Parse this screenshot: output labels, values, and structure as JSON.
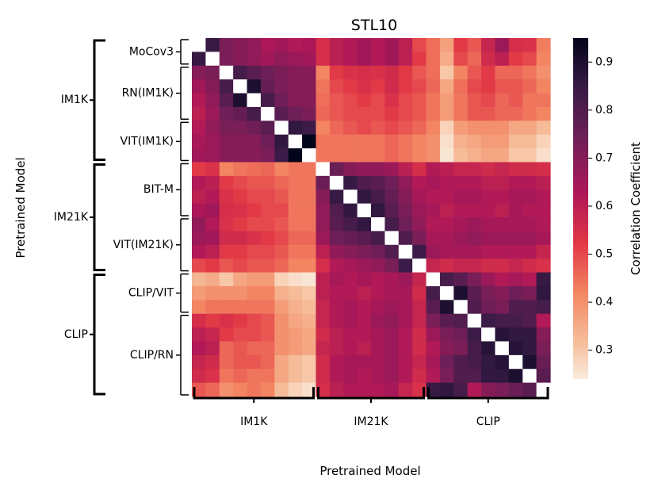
{
  "chart_data": {
    "type": "heatmap",
    "title": "STL10",
    "xlabel": "Pretrained Model",
    "ylabel": "Pretrained Model",
    "n": 26,
    "colorbar": {
      "label": "Correlation Coefficient",
      "range": [
        0.24,
        0.95
      ],
      "ticks": [
        "0.3",
        "0.4",
        "0.5",
        "0.6",
        "0.7",
        "0.8",
        "0.9"
      ],
      "tick_values": [
        0.3,
        0.4,
        0.5,
        0.6,
        0.7,
        0.8,
        0.9
      ],
      "colormap": "rocket_r",
      "diagonal_color": "#ffffff"
    },
    "groups": [
      {
        "name": "IM1K",
        "start": 0,
        "end": 8
      },
      {
        "name": "IM21K",
        "start": 9,
        "end": 16
      },
      {
        "name": "CLIP",
        "start": 17,
        "end": 25
      }
    ],
    "subgroups": [
      {
        "name": "MoCov3",
        "start": 0,
        "end": 1
      },
      {
        "name": "RN(IM1K)",
        "start": 2,
        "end": 5
      },
      {
        "name": "VIT(IM1K)",
        "start": 6,
        "end": 8
      },
      {
        "name": "BIT-M",
        "start": 9,
        "end": 12
      },
      {
        "name": "VIT(IM21K)",
        "start": 13,
        "end": 16
      },
      {
        "name": "CLIP/VIT",
        "start": 17,
        "end": 19
      },
      {
        "name": "CLIP/RN",
        "start": 20,
        "end": 25
      }
    ],
    "matrix": [
      [
        1.0,
        0.85,
        0.72,
        0.7,
        0.68,
        0.63,
        0.65,
        0.62,
        0.63,
        0.55,
        0.6,
        0.62,
        0.65,
        0.62,
        0.65,
        0.6,
        0.5,
        0.45,
        0.37,
        0.52,
        0.48,
        0.58,
        0.66,
        0.55,
        0.54,
        0.43
      ],
      [
        0.85,
        1.0,
        0.72,
        0.7,
        0.68,
        0.65,
        0.68,
        0.66,
        0.65,
        0.55,
        0.6,
        0.62,
        0.65,
        0.62,
        0.65,
        0.6,
        0.52,
        0.45,
        0.35,
        0.5,
        0.46,
        0.56,
        0.6,
        0.52,
        0.5,
        0.42
      ],
      [
        0.7,
        0.72,
        1.0,
        0.82,
        0.78,
        0.74,
        0.72,
        0.7,
        0.7,
        0.42,
        0.52,
        0.54,
        0.55,
        0.54,
        0.56,
        0.52,
        0.48,
        0.45,
        0.3,
        0.42,
        0.48,
        0.52,
        0.46,
        0.46,
        0.44,
        0.4
      ],
      [
        0.65,
        0.7,
        0.82,
        1.0,
        0.9,
        0.76,
        0.72,
        0.7,
        0.7,
        0.44,
        0.5,
        0.52,
        0.54,
        0.52,
        0.56,
        0.52,
        0.5,
        0.46,
        0.36,
        0.45,
        0.5,
        0.52,
        0.48,
        0.48,
        0.46,
        0.42
      ],
      [
        0.62,
        0.68,
        0.78,
        0.9,
        1.0,
        0.82,
        0.74,
        0.7,
        0.7,
        0.45,
        0.48,
        0.5,
        0.52,
        0.5,
        0.54,
        0.5,
        0.48,
        0.44,
        0.38,
        0.44,
        0.48,
        0.5,
        0.46,
        0.48,
        0.44,
        0.44
      ],
      [
        0.6,
        0.66,
        0.74,
        0.76,
        0.82,
        1.0,
        0.78,
        0.74,
        0.72,
        0.46,
        0.48,
        0.5,
        0.5,
        0.5,
        0.52,
        0.5,
        0.48,
        0.44,
        0.38,
        0.44,
        0.48,
        0.48,
        0.46,
        0.46,
        0.44,
        0.42
      ],
      [
        0.62,
        0.68,
        0.72,
        0.72,
        0.74,
        0.78,
        1.0,
        0.86,
        0.84,
        0.42,
        0.46,
        0.48,
        0.5,
        0.48,
        0.5,
        0.48,
        0.46,
        0.42,
        0.28,
        0.38,
        0.4,
        0.4,
        0.4,
        0.36,
        0.36,
        0.32
      ],
      [
        0.64,
        0.66,
        0.7,
        0.7,
        0.7,
        0.74,
        0.86,
        1.0,
        0.95,
        0.44,
        0.44,
        0.44,
        0.44,
        0.44,
        0.46,
        0.44,
        0.42,
        0.4,
        0.26,
        0.34,
        0.36,
        0.38,
        0.38,
        0.32,
        0.32,
        0.28
      ],
      [
        0.65,
        0.66,
        0.7,
        0.7,
        0.7,
        0.72,
        0.84,
        0.95,
        1.0,
        0.44,
        0.44,
        0.44,
        0.44,
        0.44,
        0.46,
        0.44,
        0.42,
        0.4,
        0.25,
        0.32,
        0.34,
        0.36,
        0.36,
        0.3,
        0.3,
        0.26
      ],
      [
        0.52,
        0.54,
        0.42,
        0.44,
        0.45,
        0.46,
        0.42,
        0.44,
        0.44,
        1.0,
        0.75,
        0.7,
        0.68,
        0.68,
        0.66,
        0.6,
        0.55,
        0.62,
        0.6,
        0.58,
        0.58,
        0.56,
        0.58,
        0.56,
        0.56,
        0.55
      ],
      [
        0.62,
        0.6,
        0.52,
        0.5,
        0.48,
        0.48,
        0.46,
        0.44,
        0.44,
        0.75,
        1.0,
        0.85,
        0.8,
        0.78,
        0.74,
        0.68,
        0.62,
        0.64,
        0.62,
        0.62,
        0.62,
        0.6,
        0.6,
        0.62,
        0.62,
        0.6
      ],
      [
        0.6,
        0.62,
        0.54,
        0.52,
        0.5,
        0.5,
        0.48,
        0.44,
        0.44,
        0.7,
        0.85,
        1.0,
        0.86,
        0.82,
        0.76,
        0.7,
        0.64,
        0.62,
        0.62,
        0.64,
        0.64,
        0.62,
        0.62,
        0.64,
        0.64,
        0.62
      ],
      [
        0.63,
        0.65,
        0.55,
        0.54,
        0.52,
        0.5,
        0.5,
        0.44,
        0.44,
        0.68,
        0.8,
        0.86,
        1.0,
        0.86,
        0.78,
        0.72,
        0.66,
        0.64,
        0.6,
        0.62,
        0.62,
        0.62,
        0.6,
        0.64,
        0.62,
        0.62
      ],
      [
        0.68,
        0.62,
        0.54,
        0.52,
        0.5,
        0.5,
        0.48,
        0.44,
        0.44,
        0.68,
        0.78,
        0.82,
        0.86,
        1.0,
        0.82,
        0.74,
        0.68,
        0.62,
        0.62,
        0.64,
        0.66,
        0.64,
        0.64,
        0.64,
        0.64,
        0.62
      ],
      [
        0.66,
        0.65,
        0.56,
        0.56,
        0.54,
        0.52,
        0.5,
        0.46,
        0.46,
        0.66,
        0.74,
        0.76,
        0.78,
        0.82,
        1.0,
        0.8,
        0.72,
        0.64,
        0.64,
        0.66,
        0.68,
        0.66,
        0.66,
        0.66,
        0.66,
        0.64
      ],
      [
        0.62,
        0.6,
        0.52,
        0.52,
        0.5,
        0.5,
        0.48,
        0.44,
        0.44,
        0.6,
        0.68,
        0.7,
        0.72,
        0.74,
        0.8,
        1.0,
        0.84,
        0.66,
        0.64,
        0.64,
        0.64,
        0.62,
        0.62,
        0.62,
        0.62,
        0.58
      ],
      [
        0.5,
        0.52,
        0.48,
        0.5,
        0.48,
        0.48,
        0.46,
        0.42,
        0.42,
        0.55,
        0.62,
        0.64,
        0.66,
        0.68,
        0.72,
        0.84,
        1.0,
        0.58,
        0.56,
        0.58,
        0.58,
        0.56,
        0.56,
        0.58,
        0.56,
        0.54
      ],
      [
        0.33,
        0.35,
        0.3,
        0.36,
        0.38,
        0.38,
        0.28,
        0.26,
        0.25,
        0.6,
        0.64,
        0.62,
        0.64,
        0.62,
        0.64,
        0.66,
        0.58,
        1.0,
        0.82,
        0.78,
        0.72,
        0.66,
        0.62,
        0.64,
        0.62,
        0.85
      ],
      [
        0.38,
        0.4,
        0.4,
        0.4,
        0.42,
        0.42,
        0.34,
        0.32,
        0.3,
        0.6,
        0.62,
        0.62,
        0.6,
        0.62,
        0.64,
        0.64,
        0.56,
        0.82,
        1.0,
        0.9,
        0.78,
        0.72,
        0.7,
        0.74,
        0.72,
        0.86
      ],
      [
        0.42,
        0.44,
        0.44,
        0.44,
        0.44,
        0.44,
        0.38,
        0.34,
        0.32,
        0.58,
        0.62,
        0.64,
        0.62,
        0.64,
        0.66,
        0.64,
        0.58,
        0.78,
        0.9,
        1.0,
        0.8,
        0.74,
        0.72,
        0.8,
        0.8,
        0.82
      ],
      [
        0.55,
        0.52,
        0.54,
        0.52,
        0.5,
        0.48,
        0.4,
        0.36,
        0.34,
        0.58,
        0.62,
        0.64,
        0.62,
        0.66,
        0.68,
        0.64,
        0.58,
        0.72,
        0.78,
        0.8,
        1.0,
        0.84,
        0.82,
        0.82,
        0.8,
        0.62
      ],
      [
        0.6,
        0.58,
        0.52,
        0.5,
        0.5,
        0.48,
        0.4,
        0.38,
        0.36,
        0.56,
        0.6,
        0.62,
        0.62,
        0.64,
        0.66,
        0.62,
        0.56,
        0.66,
        0.72,
        0.74,
        0.84,
        1.0,
        0.88,
        0.86,
        0.86,
        0.7
      ],
      [
        0.62,
        0.6,
        0.46,
        0.48,
        0.46,
        0.46,
        0.4,
        0.38,
        0.36,
        0.58,
        0.6,
        0.62,
        0.6,
        0.64,
        0.66,
        0.62,
        0.56,
        0.62,
        0.7,
        0.72,
        0.82,
        0.88,
        1.0,
        0.88,
        0.86,
        0.72
      ],
      [
        0.58,
        0.56,
        0.46,
        0.48,
        0.48,
        0.46,
        0.36,
        0.32,
        0.3,
        0.56,
        0.62,
        0.64,
        0.64,
        0.64,
        0.66,
        0.62,
        0.58,
        0.64,
        0.74,
        0.8,
        0.82,
        0.86,
        0.88,
        1.0,
        0.9,
        0.75
      ],
      [
        0.56,
        0.54,
        0.44,
        0.46,
        0.44,
        0.44,
        0.36,
        0.32,
        0.3,
        0.56,
        0.62,
        0.64,
        0.62,
        0.64,
        0.66,
        0.62,
        0.56,
        0.62,
        0.72,
        0.8,
        0.8,
        0.86,
        0.86,
        0.9,
        1.0,
        0.78
      ],
      [
        0.48,
        0.46,
        0.4,
        0.42,
        0.44,
        0.42,
        0.32,
        0.28,
        0.26,
        0.55,
        0.6,
        0.62,
        0.62,
        0.62,
        0.64,
        0.58,
        0.54,
        0.85,
        0.86,
        0.82,
        0.62,
        0.7,
        0.72,
        0.75,
        0.78,
        1.0
      ]
    ]
  }
}
